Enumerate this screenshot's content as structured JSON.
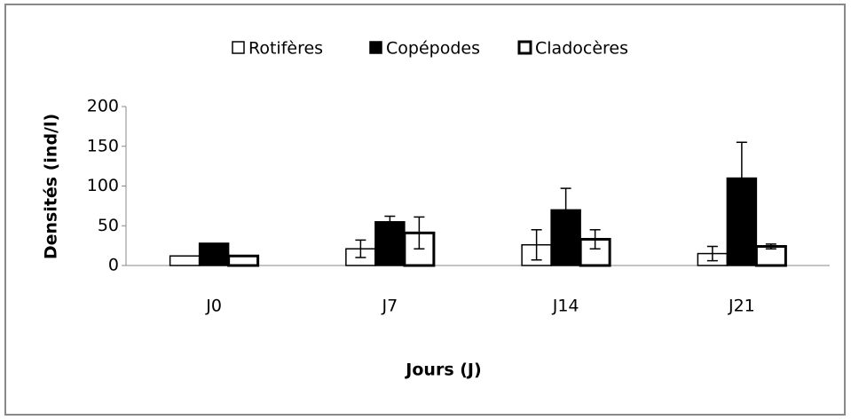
{
  "chart_data": {
    "type": "bar",
    "categories": [
      "J0",
      "J7",
      "J14",
      "J21"
    ],
    "series": [
      {
        "name": "Rotifères",
        "color": "#ffffff",
        "values": [
          12,
          21,
          26,
          15
        ],
        "errors": [
          null,
          11,
          19,
          9
        ]
      },
      {
        "name": "Copépodes",
        "color": "#000000",
        "values": [
          28,
          55,
          70,
          110
        ],
        "errors": [
          null,
          7,
          27,
          45
        ]
      },
      {
        "name": "Cladocères",
        "color": "#ffffff",
        "values": [
          12,
          41,
          33,
          24
        ],
        "errors": [
          null,
          20,
          12,
          3
        ]
      }
    ],
    "y_label": "Densités (ind/l)",
    "x_label": "Jours (J)",
    "ylim": [
      0,
      200
    ],
    "yticks": [
      0,
      50,
      100,
      150,
      200
    ],
    "legend": "top"
  }
}
